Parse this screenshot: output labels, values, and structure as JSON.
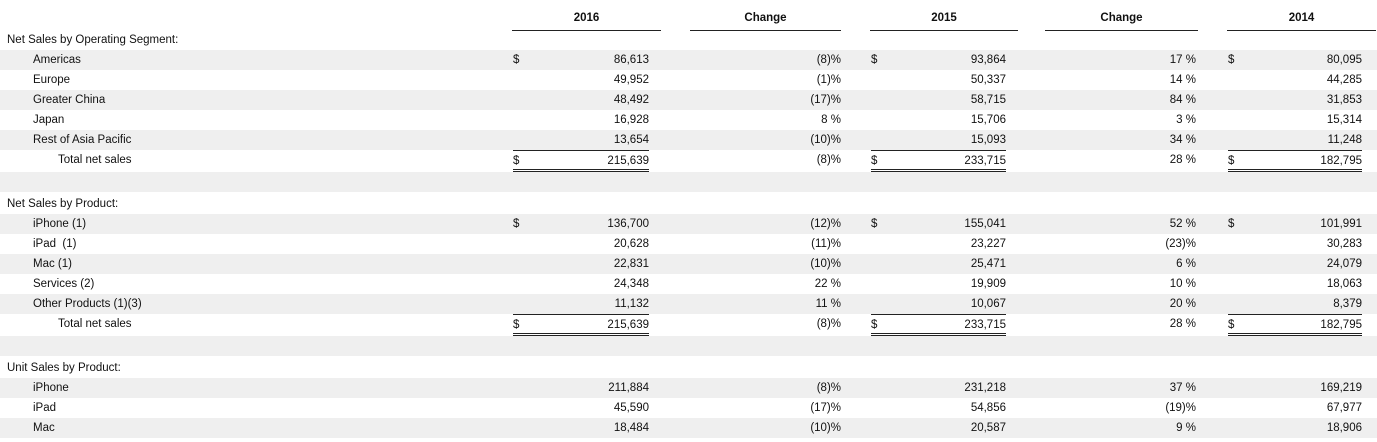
{
  "header": {
    "col_2016": "2016",
    "col_change1": "Change",
    "col_2015": "2015",
    "col_change2": "Change",
    "col_2014": "2014"
  },
  "sections": [
    {
      "title": "Net Sales by Operating Segment:",
      "rows": [
        {
          "label": "Americas",
          "d1": "$",
          "v2016": "86,613",
          "c1": "(8)%",
          "d2": "$",
          "v2015": "93,864",
          "c2": "17 %",
          "d3": "$",
          "v2014": "80,095"
        },
        {
          "label": "Europe",
          "d1": "",
          "v2016": "49,952",
          "c1": "(1)%",
          "d2": "",
          "v2015": "50,337",
          "c2": "14 %",
          "d3": "",
          "v2014": "44,285"
        },
        {
          "label": "Greater China",
          "d1": "",
          "v2016": "48,492",
          "c1": "(17)%",
          "d2": "",
          "v2015": "58,715",
          "c2": "84 %",
          "d3": "",
          "v2014": "31,853"
        },
        {
          "label": "Japan",
          "d1": "",
          "v2016": "16,928",
          "c1": "8 %",
          "d2": "",
          "v2015": "15,706",
          "c2": "3 %",
          "d3": "",
          "v2014": "15,314"
        },
        {
          "label": "Rest of Asia Pacific",
          "d1": "",
          "v2016": "13,654",
          "c1": "(10)%",
          "d2": "",
          "v2015": "15,093",
          "c2": "34 %",
          "d3": "",
          "v2014": "11,248"
        }
      ],
      "total": {
        "label": "Total net sales",
        "d1": "$",
        "v2016": "215,639",
        "c1": "(8)%",
        "d2": "$",
        "v2015": "233,715",
        "c2": "28 %",
        "d3": "$",
        "v2014": "182,795"
      }
    },
    {
      "title": "Net Sales by Product:",
      "rows": [
        {
          "label": "iPhone (1)",
          "d1": "$",
          "v2016": "136,700",
          "c1": "(12)%",
          "d2": "$",
          "v2015": "155,041",
          "c2": "52 %",
          "d3": "$",
          "v2014": "101,991"
        },
        {
          "label": "iPad  (1)",
          "d1": "",
          "v2016": "20,628",
          "c1": "(11)%",
          "d2": "",
          "v2015": "23,227",
          "c2": "(23)%",
          "d3": "",
          "v2014": "30,283"
        },
        {
          "label": "Mac (1)",
          "d1": "",
          "v2016": "22,831",
          "c1": "(10)%",
          "d2": "",
          "v2015": "25,471",
          "c2": "6 %",
          "d3": "",
          "v2014": "24,079"
        },
        {
          "label": "Services (2)",
          "d1": "",
          "v2016": "24,348",
          "c1": "22 %",
          "d2": "",
          "v2015": "19,909",
          "c2": "10 %",
          "d3": "",
          "v2014": "18,063"
        },
        {
          "label": "Other Products (1)(3)",
          "d1": "",
          "v2016": "11,132",
          "c1": "11 %",
          "d2": "",
          "v2015": "10,067",
          "c2": "20 %",
          "d3": "",
          "v2014": "8,379"
        }
      ],
      "total": {
        "label": "Total net sales",
        "d1": "$",
        "v2016": "215,639",
        "c1": "(8)%",
        "d2": "$",
        "v2015": "233,715",
        "c2": "28 %",
        "d3": "$",
        "v2014": "182,795"
      }
    },
    {
      "title": "Unit Sales by Product:",
      "rows": [
        {
          "label": "iPhone",
          "d1": "",
          "v2016": "211,884",
          "c1": "(8)%",
          "d2": "",
          "v2015": "231,218",
          "c2": "37 %",
          "d3": "",
          "v2014": "169,219"
        },
        {
          "label": "iPad",
          "d1": "",
          "v2016": "45,590",
          "c1": "(17)%",
          "d2": "",
          "v2015": "54,856",
          "c2": "(19)%",
          "d3": "",
          "v2014": "67,977"
        },
        {
          "label": "Mac",
          "d1": "",
          "v2016": "18,484",
          "c1": "(10)%",
          "d2": "",
          "v2015": "20,587",
          "c2": "9 %",
          "d3": "",
          "v2014": "18,906"
        }
      ]
    }
  ]
}
